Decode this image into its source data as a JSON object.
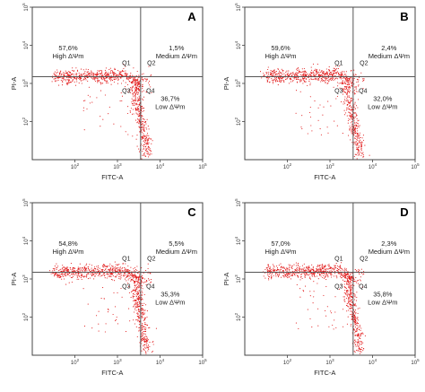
{
  "chart_data": [
    {
      "type": "scatter",
      "panel": "A",
      "xlabel": "FITC-A",
      "ylabel": "PI-A",
      "x_scale": "log",
      "y_scale": "log",
      "xlim": [
        10,
        100000
      ],
      "ylim": [
        10,
        100000
      ],
      "x_ticks": [
        "10^2",
        "10^3",
        "10^4",
        "10^5"
      ],
      "y_ticks": [
        "10^2",
        "10^3",
        "10^4",
        "10^5"
      ],
      "gate": {
        "x": 3500,
        "y": 1500
      },
      "quadrants": [
        {
          "id": "Q1",
          "percent": "57,6%",
          "label": "High ΔΨm"
        },
        {
          "id": "Q2",
          "percent": "1,5%",
          "label": "Medium ΔΨm"
        },
        {
          "id": "Q3",
          "percent": "",
          "label": ""
        },
        {
          "id": "Q4",
          "percent": "36,7%",
          "label": "Low ΔΨm"
        }
      ]
    },
    {
      "type": "scatter",
      "panel": "B",
      "xlabel": "FITC-A",
      "ylabel": "PI-A",
      "x_scale": "log",
      "y_scale": "log",
      "xlim": [
        10,
        100000
      ],
      "ylim": [
        10,
        100000
      ],
      "x_ticks": [
        "10^2",
        "10^3",
        "10^4",
        "10^5"
      ],
      "y_ticks": [
        "10^2",
        "10^3",
        "10^4",
        "10^5"
      ],
      "gate": {
        "x": 3500,
        "y": 1500
      },
      "quadrants": [
        {
          "id": "Q1",
          "percent": "59,6%",
          "label": "High ΔΨm"
        },
        {
          "id": "Q2",
          "percent": "2,4%",
          "label": "Medium ΔΨm"
        },
        {
          "id": "Q3",
          "percent": "",
          "label": ""
        },
        {
          "id": "Q4",
          "percent": "32,0%",
          "label": "Low ΔΨm"
        }
      ]
    },
    {
      "type": "scatter",
      "panel": "C",
      "xlabel": "FITC-A",
      "ylabel": "PI-A",
      "x_scale": "log",
      "y_scale": "log",
      "xlim": [
        10,
        100000
      ],
      "ylim": [
        10,
        100000
      ],
      "x_ticks": [
        "10^2",
        "10^3",
        "10^4",
        "10^5"
      ],
      "y_ticks": [
        "10^2",
        "10^3",
        "10^4",
        "10^5"
      ],
      "gate": {
        "x": 3500,
        "y": 1500
      },
      "quadrants": [
        {
          "id": "Q1",
          "percent": "54,8%",
          "label": "High ΔΨm"
        },
        {
          "id": "Q2",
          "percent": "5,5%",
          "label": "Medium ΔΨm"
        },
        {
          "id": "Q3",
          "percent": "",
          "label": ""
        },
        {
          "id": "Q4",
          "percent": "35,3%",
          "label": "Low ΔΨm"
        }
      ]
    },
    {
      "type": "scatter",
      "panel": "D",
      "xlabel": "FITC-A",
      "ylabel": "PI-A",
      "x_scale": "log",
      "y_scale": "log",
      "xlim": [
        10,
        100000
      ],
      "ylim": [
        10,
        100000
      ],
      "x_ticks": [
        "10^2",
        "10^3",
        "10^4",
        "10^5"
      ],
      "y_ticks": [
        "10^2",
        "10^3",
        "10^4",
        "10^5"
      ],
      "gate": {
        "x": 3500,
        "y": 1500
      },
      "quadrants": [
        {
          "id": "Q1",
          "percent": "57,0%",
          "label": "High ΔΨm"
        },
        {
          "id": "Q2",
          "percent": "2,3%",
          "label": "Medium ΔΨm"
        },
        {
          "id": "Q3",
          "percent": "",
          "label": ""
        },
        {
          "id": "Q4",
          "percent": "35,8%",
          "label": "Low ΔΨm"
        }
      ]
    }
  ],
  "colors": {
    "dots": "#e01010",
    "frame": "#444444",
    "gate": "#555555"
  }
}
